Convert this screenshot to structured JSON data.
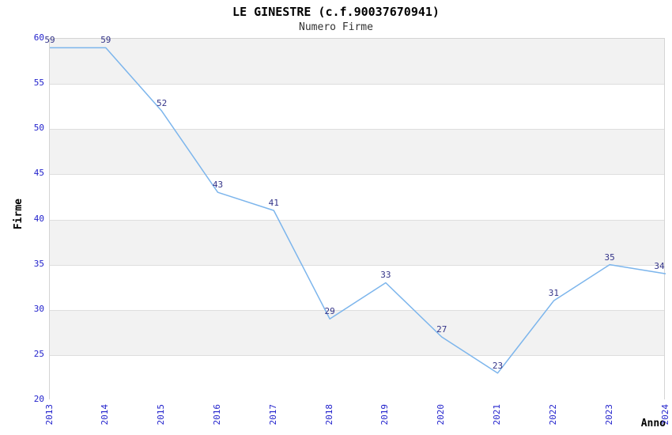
{
  "header": {
    "title": "LE GINESTRE (c.f.90037670941)",
    "subtitle": "Numero Firme"
  },
  "chart_data": {
    "type": "line",
    "title": "LE GINESTRE (c.f.90037670941)",
    "subtitle": "Numero Firme",
    "xlabel": "Anno",
    "ylabel": "Firme",
    "categories": [
      "2013",
      "2014",
      "2015",
      "2016",
      "2017",
      "2018",
      "2019",
      "2020",
      "2021",
      "2022",
      "2023",
      "2024"
    ],
    "series": [
      {
        "name": "Numero Firme",
        "values": [
          59,
          59,
          52,
          43,
          41,
          29,
          33,
          27,
          23,
          31,
          35,
          34
        ]
      }
    ],
    "ylim": [
      20,
      60
    ],
    "ytick_step": 5,
    "yticks": [
      20,
      25,
      30,
      35,
      40,
      45,
      50,
      55,
      60
    ],
    "grid": true,
    "plot_bands": "alternating gray/white every 5 units, gray on top slot",
    "legend": "none",
    "data_labels": true,
    "markers": false,
    "style": {
      "line_color": "#7cb5ec",
      "tick_label_color": "#2222cc",
      "data_label_color": "#333388",
      "band_gray": "#f2f2f2",
      "band_white": "#ffffff",
      "grid_color": "#dedede",
      "border_color": "#d4d4d4",
      "title_color": "#000000",
      "subtitle_color": "#333333"
    }
  }
}
